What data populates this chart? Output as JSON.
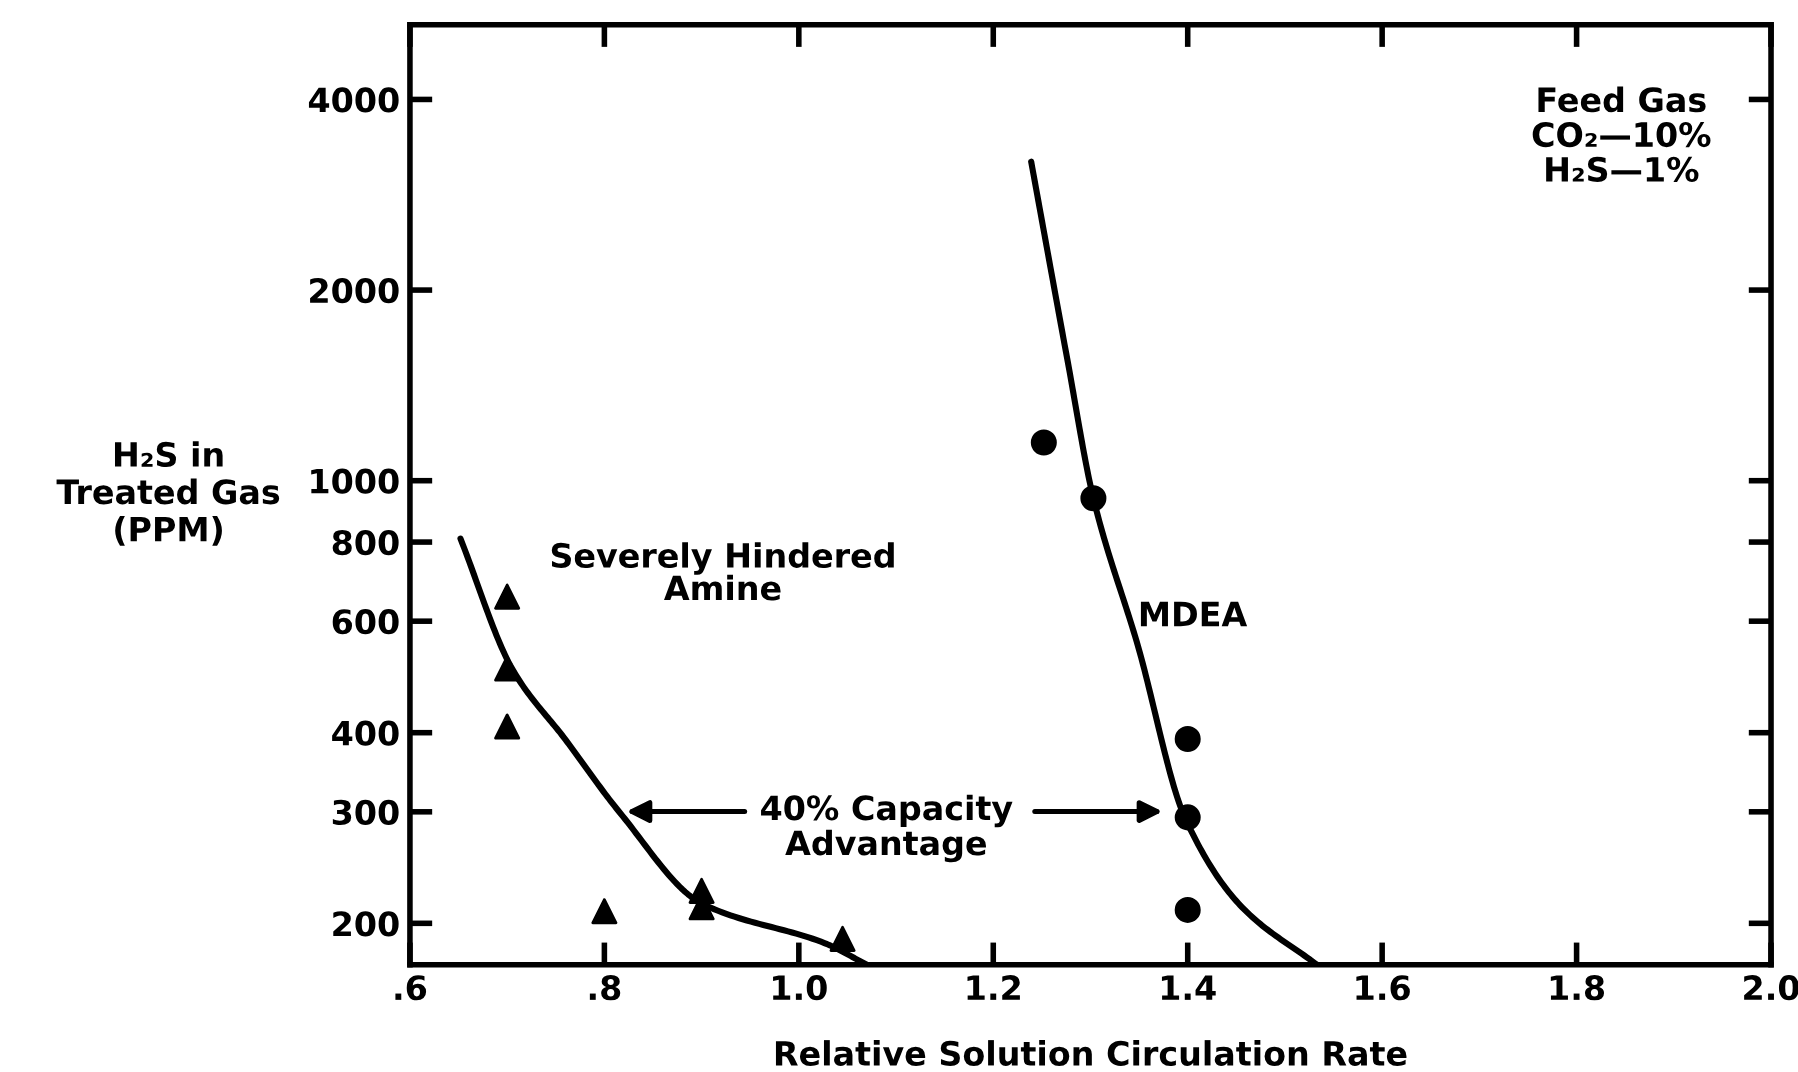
{
  "chart_data": {
    "type": "scatter",
    "xlabel": "Relative Solution Circulation Rate",
    "ylabel": "H₂S in\nTreated Gas\n(PPM)",
    "series": [
      {
        "marker": "triangle",
        "color": "#000000",
        "x": [
          0.7,
          0.7,
          0.7,
          0.8,
          0.9,
          0.9,
          1.045
        ],
        "values": [
          656,
          505,
          409,
          209,
          225,
          212,
          189
        ]
      },
      {
        "marker": "circle",
        "color": "#000000",
        "x": [
          1.252,
          1.303,
          1.4,
          1.4,
          1.4
        ],
        "values": [
          1149,
          938,
          391,
          294,
          210
        ]
      },
      {
        "name": "Severely Hindered\nAmine",
        "type": "line",
        "marker": "none",
        "line_style": "solid",
        "color": "#000000",
        "x": [
          0.652,
          0.705,
          0.76,
          0.816,
          0.9,
          1.027,
          1.07
        ],
        "values": [
          810,
          505,
          390,
          299,
          215,
          186,
          172
        ]
      },
      {
        "name": "MDEA",
        "type": "line",
        "marker": "none",
        "line_style": "solid",
        "color": "#000000",
        "x": [
          1.239,
          1.276,
          1.303,
          1.349,
          1.397,
          1.456,
          1.533
        ],
        "values": [
          3190,
          1560,
          938,
          547,
          294,
          212,
          172
        ]
      }
    ],
    "annotations": [
      "Feed Gas\nCO₂—10%\nH₂S—1%",
      "40% Capacity\nAdvantage"
    ],
    "log": "y",
    "xlim": [
      0.6,
      2.0
    ],
    "ylim": [
      172,
      5250
    ],
    "xticks": [
      {
        "value": 0.6,
        "label": ".6"
      },
      {
        "value": 0.8,
        "label": ".8"
      },
      {
        "value": 1.0,
        "label": "1.0"
      },
      1.2,
      1.4,
      1.6,
      1.8,
      {
        "value": 2.0,
        "label": "2.0"
      }
    ],
    "yticks": [
      200,
      300,
      400,
      600,
      800,
      1000,
      2000,
      4000
    ],
    "grid": false,
    "legend": false
  }
}
